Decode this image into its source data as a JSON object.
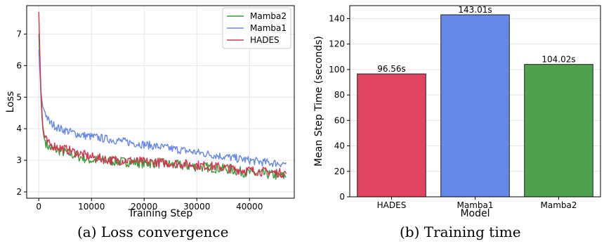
{
  "captions": {
    "a": "(a) Loss convergence",
    "b": "(b) Training time"
  },
  "chart_data": [
    {
      "type": "line",
      "title": "",
      "xlabel": "Training Step",
      "ylabel": "Loss",
      "xlim": [
        -2300,
        48500
      ],
      "ylim": [
        1.8,
        7.9
      ],
      "xticks": [
        0,
        10000,
        20000,
        30000,
        40000
      ],
      "xtick_labels": [
        "0",
        "10000",
        "20000",
        "30000",
        "40000"
      ],
      "yticks": [
        2,
        3,
        4,
        5,
        6,
        7
      ],
      "ytick_labels": [
        "2",
        "3",
        "4",
        "5",
        "6",
        "7"
      ],
      "grid": true,
      "legend_position": "top-right",
      "series": [
        {
          "name": "Mamba2",
          "color": "#3a9a3a",
          "x": [
            0,
            250,
            500,
            750,
            1000,
            1500,
            2000,
            3000,
            4000,
            5000,
            6000,
            8000,
            10000,
            12000,
            14000,
            16000,
            18000,
            20000,
            22000,
            24000,
            26000,
            28000,
            30000,
            32000,
            34000,
            36000,
            38000,
            40000,
            42000,
            44000,
            46000,
            47000
          ],
          "y": [
            7.0,
            5.8,
            4.6,
            4.0,
            3.7,
            3.5,
            3.4,
            3.35,
            3.3,
            3.25,
            3.2,
            3.1,
            3.0,
            3.0,
            2.98,
            2.95,
            2.95,
            2.9,
            2.92,
            2.88,
            2.85,
            2.82,
            2.8,
            2.78,
            2.75,
            2.72,
            2.65,
            2.6,
            2.58,
            2.55,
            2.5,
            2.5
          ]
        },
        {
          "name": "Mamba1",
          "color": "#6688e8",
          "x": [
            0,
            250,
            500,
            750,
            1000,
            1500,
            2000,
            3000,
            4000,
            5000,
            6000,
            8000,
            10000,
            12000,
            14000,
            16000,
            18000,
            20000,
            22000,
            24000,
            26000,
            28000,
            30000,
            32000,
            34000,
            36000,
            38000,
            40000,
            42000,
            44000,
            46000,
            47000
          ],
          "y": [
            6.5,
            5.6,
            5.0,
            4.7,
            4.6,
            4.4,
            4.2,
            4.1,
            4.0,
            3.95,
            3.9,
            3.8,
            3.75,
            3.7,
            3.65,
            3.6,
            3.55,
            3.5,
            3.45,
            3.4,
            3.35,
            3.3,
            3.25,
            3.2,
            3.15,
            3.1,
            3.05,
            3.0,
            2.95,
            2.92,
            2.9,
            2.9
          ]
        },
        {
          "name": "HADES",
          "color": "#d6334f",
          "x": [
            0,
            250,
            500,
            750,
            1000,
            1500,
            2000,
            3000,
            4000,
            5000,
            6000,
            8000,
            10000,
            12000,
            14000,
            16000,
            18000,
            20000,
            22000,
            24000,
            26000,
            28000,
            30000,
            32000,
            34000,
            36000,
            38000,
            40000,
            42000,
            44000,
            46000,
            47000
          ],
          "y": [
            7.7,
            6.0,
            4.8,
            4.1,
            3.8,
            3.6,
            3.5,
            3.45,
            3.4,
            3.35,
            3.3,
            3.2,
            3.1,
            3.05,
            3.0,
            3.0,
            2.98,
            2.95,
            2.95,
            2.92,
            2.9,
            2.88,
            2.85,
            2.82,
            2.8,
            2.75,
            2.7,
            2.68,
            2.65,
            2.62,
            2.6,
            2.6
          ]
        }
      ]
    },
    {
      "type": "bar",
      "title": "",
      "xlabel": "Model",
      "ylabel": "Mean Step Time (seconds)",
      "ylim": [
        0,
        150.2
      ],
      "yticks": [
        0,
        20,
        40,
        60,
        80,
        100,
        120,
        140
      ],
      "ytick_labels": [
        "0",
        "20",
        "40",
        "60",
        "80",
        "100",
        "120",
        "140"
      ],
      "grid": true,
      "categories": [
        "HADES",
        "Mamba1",
        "Mamba2"
      ],
      "values": [
        96.56,
        143.01,
        104.02
      ],
      "value_labels": [
        "96.56s",
        "143.01s",
        "104.02s"
      ],
      "colors": [
        "#e04460",
        "#6688e8",
        "#4fa04f"
      ]
    }
  ]
}
